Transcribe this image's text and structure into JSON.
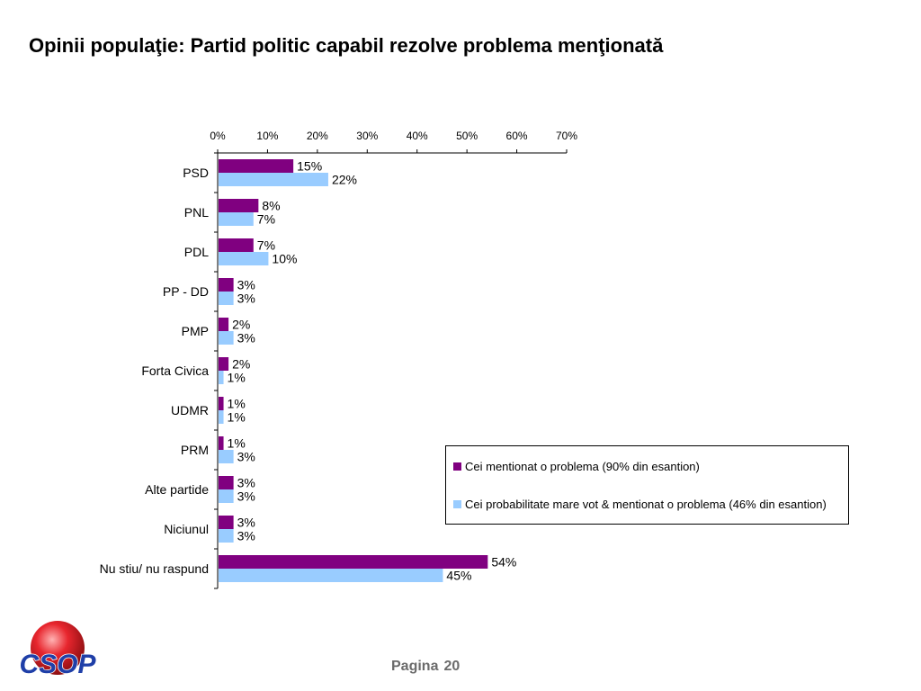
{
  "title": "Opinii populaţie: Partid politic capabil rezolve problema menţionată",
  "chart_data": {
    "type": "bar",
    "orientation": "horizontal",
    "x_ticks": [
      "0%",
      "10%",
      "20%",
      "30%",
      "40%",
      "50%",
      "60%",
      "70%"
    ],
    "xlim": [
      0,
      70
    ],
    "x_axis_position": "top",
    "grid": false,
    "categories": [
      "PSD",
      "PNL",
      "PDL",
      "PP - DD",
      "PMP",
      "Forta Civica",
      "UDMR",
      "PRM",
      "Alte partide",
      "Niciunul",
      "Nu stiu/ nu raspund"
    ],
    "series": [
      {
        "name": "Cei mentionat o problema (90% din esantion)",
        "color": "#800080",
        "values": [
          15,
          8,
          7,
          3,
          2,
          2,
          1,
          1,
          3,
          3,
          54
        ],
        "labels": [
          "15%",
          "8%",
          "7%",
          "3%",
          "2%",
          "2%",
          "1%",
          "1%",
          "3%",
          "3%",
          "54%"
        ]
      },
      {
        "name": "Cei probabilitate mare vot & mentionat o problema (46% din esantion)",
        "color": "#99ccff",
        "values": [
          22,
          7,
          10,
          3,
          3,
          1,
          1,
          3,
          3,
          3,
          45
        ],
        "labels": [
          "22%",
          "7%",
          "10%",
          "3%",
          "3%",
          "1%",
          "1%",
          "3%",
          "3%",
          "3%",
          "45%"
        ]
      }
    ],
    "legend_position": "bottom-right"
  },
  "footer": {
    "page_word": "Pagina",
    "page_number": "20",
    "logo_text": "CSOP",
    "logo_color": "#1f3fa8",
    "logo_ball_color": "#e8262e"
  }
}
